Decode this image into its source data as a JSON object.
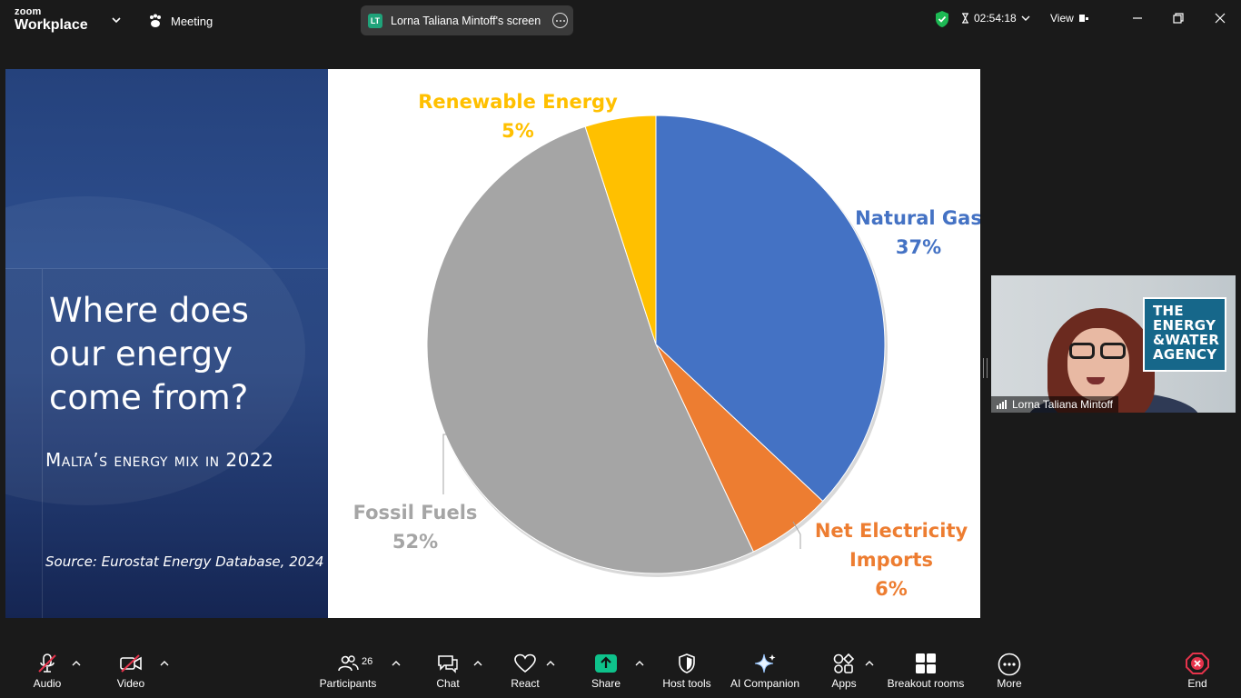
{
  "app": {
    "brand_small": "zoom",
    "brand_large": "Workplace"
  },
  "titlebar": {
    "meeting_label": "Meeting",
    "share_badge": "LT",
    "share_title": "Lorna Taliana Mintoff's screen",
    "timer": "02:54:18",
    "view_label": "View",
    "shield_color": "#1db954"
  },
  "slide": {
    "title": "Where does our energy come from?",
    "subtitle": "Malta’s energy mix in 2022",
    "source": "Source: Eurostat Energy Database, 2024"
  },
  "chart_data": {
    "type": "pie",
    "title": "",
    "slices": [
      {
        "name": "Natural Gas",
        "value": 37,
        "label": "37%",
        "color": "#4472c4"
      },
      {
        "name": "Net Electricity Imports",
        "value": 6,
        "label": "6%",
        "color": "#ed7d31"
      },
      {
        "name": "Fossil Fuels",
        "value": 52,
        "label": "52%",
        "color": "#a5a5a5"
      },
      {
        "name": "Renewable Energy",
        "value": 5,
        "label": "5%",
        "color": "#ffc000"
      }
    ],
    "label_lines": {
      "natural_gas": [
        "Natural Gas",
        "37%"
      ],
      "imports": [
        "Net Electricity",
        "Imports",
        "6%"
      ],
      "fossil": [
        "Fossil Fuels",
        "52%"
      ],
      "renewable": [
        "Renewable Energy",
        "5%"
      ]
    },
    "start_angle_deg": 0,
    "direction": "clockwise"
  },
  "participant": {
    "name": "Lorna Taliana Mintoff",
    "logo_lines": [
      "THE",
      "ENERGY",
      "&WATER",
      "AGENCY"
    ]
  },
  "toolbar": {
    "audio": "Audio",
    "video": "Video",
    "participants": "Participants",
    "participants_count": "26",
    "chat": "Chat",
    "react": "React",
    "share": "Share",
    "host_tools": "Host tools",
    "ai_companion": "AI Companion",
    "apps": "Apps",
    "breakout_rooms": "Breakout rooms",
    "more": "More",
    "end": "End",
    "share_color": "#0ec28b",
    "end_color": "#e5334b"
  }
}
